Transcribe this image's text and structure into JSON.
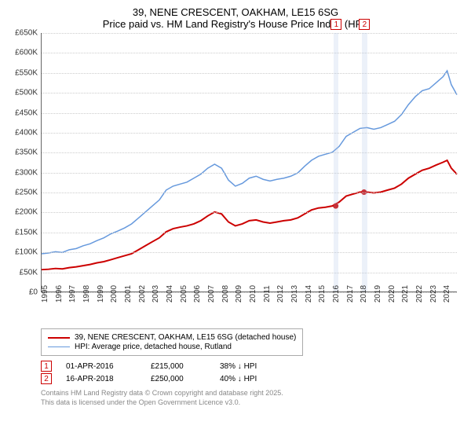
{
  "title": {
    "line1": "39, NENE CRESCENT, OAKHAM, LE15 6SG",
    "line2": "Price paid vs. HM Land Registry's House Price Index (HPI)"
  },
  "chart": {
    "type": "line",
    "ylim": [
      0,
      650000
    ],
    "ytick_step": 50000,
    "ytick_labels": [
      "£0",
      "£50K",
      "£100K",
      "£150K",
      "£200K",
      "£250K",
      "£300K",
      "£350K",
      "£400K",
      "£450K",
      "£500K",
      "£550K",
      "£600K",
      "£650K"
    ],
    "xrange": [
      1995,
      2025
    ],
    "xtick_step": 1,
    "xticks": [
      1995,
      1996,
      1997,
      1998,
      1999,
      2000,
      2001,
      2002,
      2003,
      2004,
      2005,
      2006,
      2007,
      2008,
      2009,
      2010,
      2011,
      2012,
      2013,
      2014,
      2015,
      2016,
      2017,
      2018,
      2019,
      2020,
      2021,
      2022,
      2023,
      2024
    ],
    "grid_color": "#cccccc",
    "axis_color": "#666666",
    "background_color": "#ffffff",
    "label_fontsize": 10,
    "title_fontsize": 13,
    "marker_band_color": "rgba(180,200,230,0.25)",
    "series": [
      {
        "name": "property",
        "label": "39, NENE CRESCENT, OAKHAM, LE15 6SG (detached house)",
        "color": "#cc0000",
        "line_width": 2,
        "points": [
          [
            1995,
            55000
          ],
          [
            1995.5,
            56000
          ],
          [
            1996,
            58000
          ],
          [
            1996.5,
            57000
          ],
          [
            1997,
            60000
          ],
          [
            1997.5,
            62000
          ],
          [
            1998,
            65000
          ],
          [
            1998.5,
            68000
          ],
          [
            1999,
            72000
          ],
          [
            1999.5,
            75000
          ],
          [
            2000,
            80000
          ],
          [
            2000.5,
            85000
          ],
          [
            2001,
            90000
          ],
          [
            2001.5,
            95000
          ],
          [
            2002,
            105000
          ],
          [
            2002.5,
            115000
          ],
          [
            2003,
            125000
          ],
          [
            2003.5,
            135000
          ],
          [
            2004,
            150000
          ],
          [
            2004.5,
            158000
          ],
          [
            2005,
            162000
          ],
          [
            2005.5,
            165000
          ],
          [
            2006,
            170000
          ],
          [
            2006.5,
            178000
          ],
          [
            2007,
            190000
          ],
          [
            2007.5,
            200000
          ],
          [
            2008,
            195000
          ],
          [
            2008.5,
            175000
          ],
          [
            2009,
            165000
          ],
          [
            2009.5,
            170000
          ],
          [
            2010,
            178000
          ],
          [
            2010.5,
            180000
          ],
          [
            2011,
            175000
          ],
          [
            2011.5,
            172000
          ],
          [
            2012,
            175000
          ],
          [
            2012.5,
            178000
          ],
          [
            2013,
            180000
          ],
          [
            2013.5,
            185000
          ],
          [
            2014,
            195000
          ],
          [
            2014.5,
            205000
          ],
          [
            2015,
            210000
          ],
          [
            2015.5,
            212000
          ],
          [
            2016,
            215000
          ],
          [
            2016.5,
            225000
          ],
          [
            2017,
            240000
          ],
          [
            2017.5,
            245000
          ],
          [
            2018,
            250000
          ],
          [
            2018.5,
            250000
          ],
          [
            2019,
            248000
          ],
          [
            2019.5,
            250000
          ],
          [
            2020,
            255000
          ],
          [
            2020.5,
            260000
          ],
          [
            2021,
            270000
          ],
          [
            2021.5,
            285000
          ],
          [
            2022,
            295000
          ],
          [
            2022.5,
            305000
          ],
          [
            2023,
            310000
          ],
          [
            2023.5,
            318000
          ],
          [
            2024,
            325000
          ],
          [
            2024.3,
            330000
          ],
          [
            2024.6,
            310000
          ],
          [
            2025,
            295000
          ]
        ]
      },
      {
        "name": "hpi",
        "label": "HPI: Average price, detached house, Rutland",
        "color": "#6699dd",
        "line_width": 1.5,
        "points": [
          [
            1995,
            95000
          ],
          [
            1995.5,
            97000
          ],
          [
            1996,
            100000
          ],
          [
            1996.5,
            98000
          ],
          [
            1997,
            105000
          ],
          [
            1997.5,
            108000
          ],
          [
            1998,
            115000
          ],
          [
            1998.5,
            120000
          ],
          [
            1999,
            128000
          ],
          [
            1999.5,
            135000
          ],
          [
            2000,
            145000
          ],
          [
            2000.5,
            152000
          ],
          [
            2001,
            160000
          ],
          [
            2001.5,
            170000
          ],
          [
            2002,
            185000
          ],
          [
            2002.5,
            200000
          ],
          [
            2003,
            215000
          ],
          [
            2003.5,
            230000
          ],
          [
            2004,
            255000
          ],
          [
            2004.5,
            265000
          ],
          [
            2005,
            270000
          ],
          [
            2005.5,
            275000
          ],
          [
            2006,
            285000
          ],
          [
            2006.5,
            295000
          ],
          [
            2007,
            310000
          ],
          [
            2007.5,
            320000
          ],
          [
            2008,
            310000
          ],
          [
            2008.5,
            280000
          ],
          [
            2009,
            265000
          ],
          [
            2009.5,
            272000
          ],
          [
            2010,
            285000
          ],
          [
            2010.5,
            290000
          ],
          [
            2011,
            282000
          ],
          [
            2011.5,
            278000
          ],
          [
            2012,
            282000
          ],
          [
            2012.5,
            285000
          ],
          [
            2013,
            290000
          ],
          [
            2013.5,
            298000
          ],
          [
            2014,
            315000
          ],
          [
            2014.5,
            330000
          ],
          [
            2015,
            340000
          ],
          [
            2015.5,
            345000
          ],
          [
            2016,
            350000
          ],
          [
            2016.5,
            365000
          ],
          [
            2017,
            390000
          ],
          [
            2017.5,
            400000
          ],
          [
            2018,
            410000
          ],
          [
            2018.5,
            412000
          ],
          [
            2019,
            408000
          ],
          [
            2019.5,
            412000
          ],
          [
            2020,
            420000
          ],
          [
            2020.5,
            428000
          ],
          [
            2021,
            445000
          ],
          [
            2021.5,
            470000
          ],
          [
            2022,
            490000
          ],
          [
            2022.5,
            505000
          ],
          [
            2023,
            510000
          ],
          [
            2023.5,
            525000
          ],
          [
            2024,
            540000
          ],
          [
            2024.3,
            555000
          ],
          [
            2024.6,
            520000
          ],
          [
            2025,
            495000
          ]
        ]
      }
    ],
    "markers": [
      {
        "num": "1",
        "x": 2016.25,
        "color": "#cc0000",
        "band_width": 0.35
      },
      {
        "num": "2",
        "x": 2018.29,
        "color": "#cc0000",
        "band_width": 0.35
      }
    ],
    "sale_points": [
      {
        "x": 2016.25,
        "y": 215000,
        "color": "#cc0000"
      },
      {
        "x": 2018.29,
        "y": 250000,
        "color": "#cc0000"
      }
    ]
  },
  "legend": {
    "items": [
      {
        "color": "#cc0000",
        "width": 2,
        "label": "39, NENE CRESCENT, OAKHAM, LE15 6SG (detached house)"
      },
      {
        "color": "#6699dd",
        "width": 1.5,
        "label": "HPI: Average price, detached house, Rutland"
      }
    ]
  },
  "sales": [
    {
      "num": "1",
      "color": "#cc0000",
      "date": "01-APR-2016",
      "price": "£215,000",
      "diff": "38% ↓ HPI"
    },
    {
      "num": "2",
      "color": "#cc0000",
      "date": "16-APR-2018",
      "price": "£250,000",
      "diff": "40% ↓ HPI"
    }
  ],
  "footer": {
    "line1": "Contains HM Land Registry data © Crown copyright and database right 2025.",
    "line2": "This data is licensed under the Open Government Licence v3.0."
  }
}
